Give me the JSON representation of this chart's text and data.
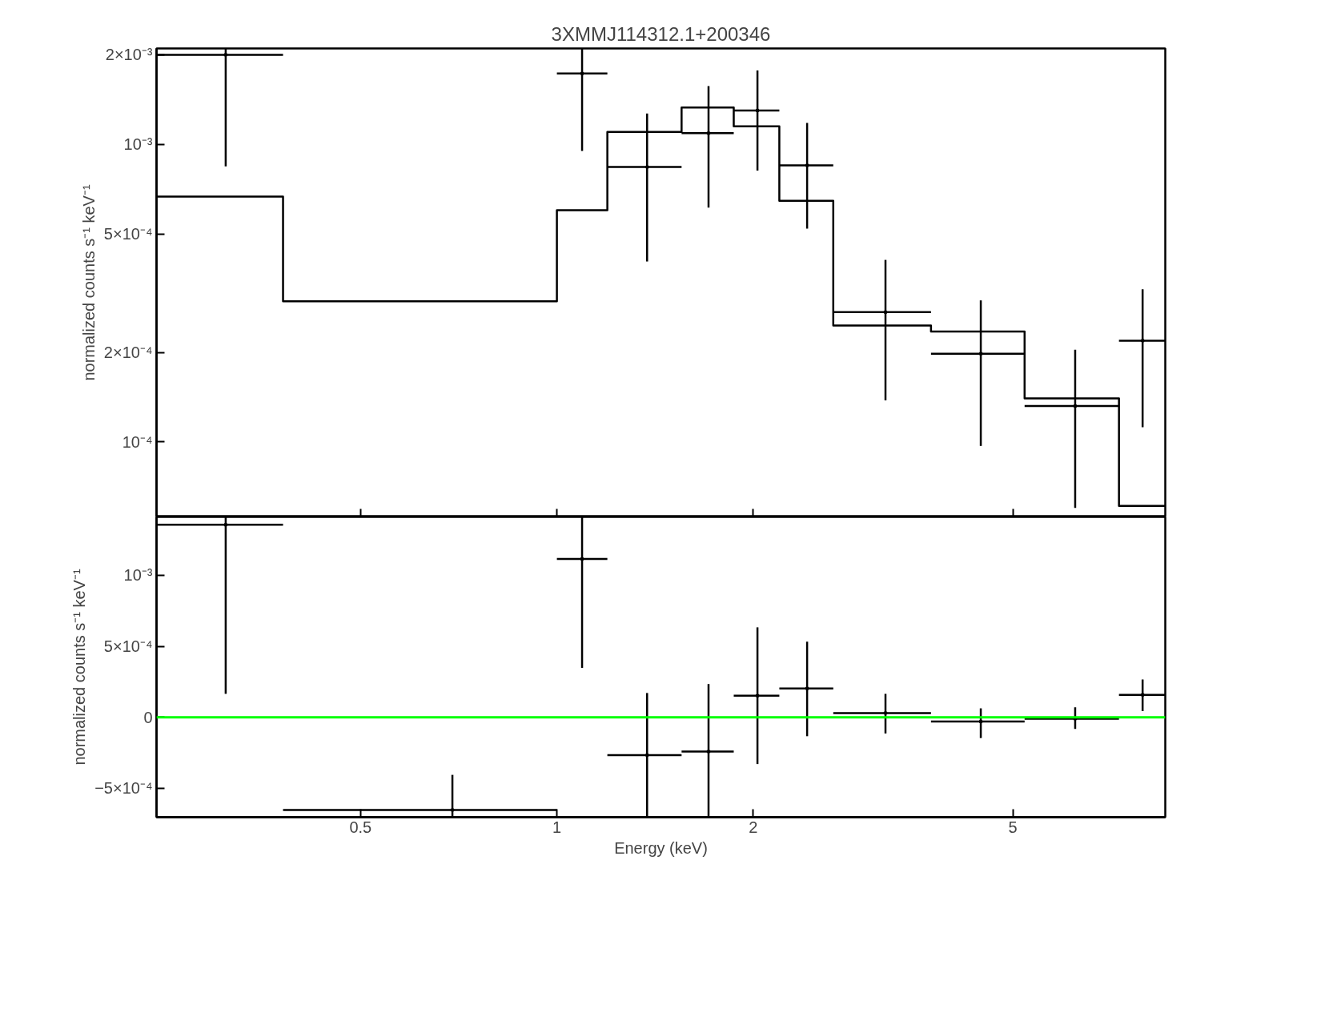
{
  "chart_data": [
    {
      "type": "scatter",
      "title": "3XMMJ114312.1+200346",
      "ylabel": "normalized counts s⁻¹ keV⁻¹",
      "log": "xy",
      "tick_labels": "y",
      "grid": false,
      "xlim": [
        0.2433,
        8.566
      ],
      "ylim": [
        5.6e-05,
        0.0021
      ],
      "xticks": [
        0.5,
        1,
        2,
        5
      ],
      "yticks": [
        {
          "value": 0.0001,
          "label": "10⁻⁴"
        },
        {
          "value": 0.0002,
          "label": "2×10⁻⁴"
        },
        {
          "value": 0.0005,
          "label": "5×10⁻⁴"
        },
        {
          "value": 0.001,
          "label": "10⁻³"
        },
        {
          "value": 0.002,
          "label": "2×10⁻³"
        }
      ],
      "series": [
        {
          "color": "#000000",
          "x": [
            0.3106,
            1.093,
            1.375,
            1.708,
            2.03,
            2.419,
            3.19,
            4.466,
            6.232,
            7.907
          ],
          "values": [
            0.002,
            0.00173,
            0.000839,
            0.00109,
            0.0013,
            0.00085,
            0.000273,
            0.000198,
            0.000132,
            0.000219
          ],
          "xerrors": [
            [
              0.2433,
              0.3803
            ],
            [
              1.0,
              1.195
            ],
            [
              1.195,
              1.553
            ],
            [
              1.553,
              1.867
            ],
            [
              1.867,
              2.193
            ],
            [
              2.193,
              2.653
            ],
            [
              2.653,
              3.746
            ],
            [
              3.746,
              5.213
            ],
            [
              5.213,
              7.274
            ],
            [
              7.274,
              8.566
            ]
          ],
          "errors": [
            [
              0.000844,
              0.0021
            ],
            [
              0.00095,
              0.0021
            ],
            [
              0.000404,
              0.00127
            ],
            [
              0.000613,
              0.00157
            ],
            [
              0.000817,
              0.00177
            ],
            [
              0.000521,
              0.00118
            ],
            [
              0.000138,
              0.000409
            ],
            [
              9.7e-05,
              0.000299
            ],
            [
              6e-05,
              0.000204
            ],
            [
              0.000112,
              0.000326
            ]
          ]
        },
        {
          "type": "step",
          "color": "#000000",
          "x": [
            0.2433,
            0.3803,
            1.0,
            1.195,
            1.553,
            1.867,
            2.193,
            2.653,
            3.746,
            5.213,
            7.274,
            8.566
          ],
          "values": [
            0.000667,
            0.000297,
            0.000601,
            0.0011,
            0.00133,
            0.00115,
            0.000646,
            0.000246,
            0.000235,
            0.00014,
            6.1e-05,
            6.1e-05
          ]
        }
      ]
    },
    {
      "type": "scatter",
      "xlabel": "Energy (keV)",
      "ylabel": "normalized counts s⁻¹ keV⁻¹",
      "log": "x",
      "grid": false,
      "xlim": [
        0.2433,
        8.566
      ],
      "ylim": [
        -0.000703,
        0.00141
      ],
      "xticks": [
        0.5,
        1,
        2,
        5
      ],
      "yticks": [
        {
          "value": -0.0005,
          "label": "−5×10⁻⁴"
        },
        0,
        {
          "value": 0.0005,
          "label": "5×10⁻⁴"
        },
        {
          "value": 0.001,
          "label": "10⁻³"
        }
      ],
      "ref_lines": [
        {
          "axis": "y",
          "value": 0,
          "color": "#00ff00"
        }
      ],
      "series": [
        {
          "color": "#000000",
          "x": [
            0.3106,
            0.6915,
            1.093,
            1.375,
            1.708,
            2.03,
            2.419,
            3.19,
            4.466,
            6.232,
            7.907
          ],
          "values": [
            0.001355,
            -0.000652,
            0.001114,
            -0.000266,
            -0.000241,
            0.000152,
            0.000203,
            3e-05,
            -3e-05,
            -1e-05,
            0.000158
          ],
          "xerrors": [
            [
              0.2433,
              0.3803
            ],
            [
              0.3803,
              1.0
            ],
            [
              1.0,
              1.195
            ],
            [
              1.195,
              1.553
            ],
            [
              1.553,
              1.867
            ],
            [
              1.867,
              2.193
            ],
            [
              2.193,
              2.653
            ],
            [
              2.653,
              3.746
            ],
            [
              3.746,
              5.213
            ],
            [
              5.213,
              7.274
            ],
            [
              7.274,
              8.566
            ]
          ],
          "errors": [
            [
              0.000165,
              0.00141
            ],
            [
              -0.000703,
              -0.000405
            ],
            [
              0.000348,
              0.00141
            ],
            [
              -0.000703,
              0.000171
            ],
            [
              -0.000703,
              0.000234
            ],
            [
              -0.000329,
              0.000633
            ],
            [
              -0.000133,
              0.000532
            ],
            [
              -0.000114,
              0.000165
            ],
            [
              -0.000146,
              6.3e-05
            ],
            [
              -8.2e-05,
              7e-05
            ],
            [
              4.4e-05,
              0.000266
            ]
          ]
        }
      ]
    }
  ]
}
